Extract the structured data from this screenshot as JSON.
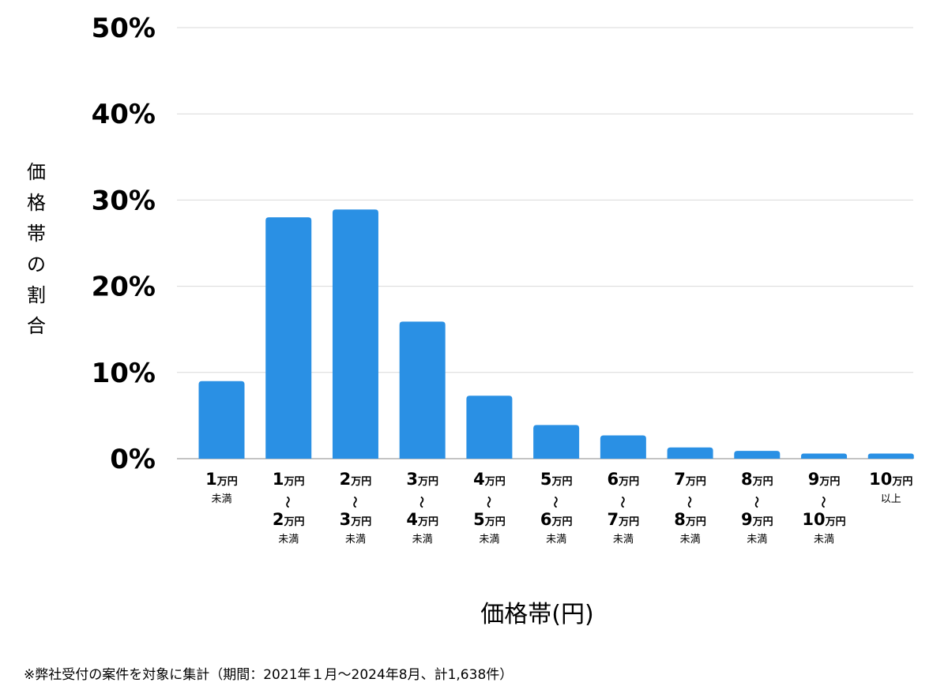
{
  "chart_data": {
    "type": "bar",
    "ylabel": "価格帯の割合",
    "xlabel": "価格帯(円)",
    "ylim": [
      0,
      50
    ],
    "yticks": [
      "0%",
      "10%",
      "20%",
      "30%",
      "40%",
      "50%"
    ],
    "grid": true,
    "bar_color": "#2a90e4",
    "categories": [
      {
        "lines": [
          {
            "num": "1",
            "unit": "万円"
          },
          {
            "small": "未満"
          }
        ]
      },
      {
        "lines": [
          {
            "num": "1",
            "unit": "万円"
          },
          {
            "wave": "〜"
          },
          {
            "num": "2",
            "unit": "万円"
          },
          {
            "small": "未満"
          }
        ]
      },
      {
        "lines": [
          {
            "num": "2",
            "unit": "万円"
          },
          {
            "wave": "〜"
          },
          {
            "num": "3",
            "unit": "万円"
          },
          {
            "small": "未満"
          }
        ]
      },
      {
        "lines": [
          {
            "num": "3",
            "unit": "万円"
          },
          {
            "wave": "〜"
          },
          {
            "num": "4",
            "unit": "万円"
          },
          {
            "small": "未満"
          }
        ]
      },
      {
        "lines": [
          {
            "num": "4",
            "unit": "万円"
          },
          {
            "wave": "〜"
          },
          {
            "num": "5",
            "unit": "万円"
          },
          {
            "small": "未満"
          }
        ]
      },
      {
        "lines": [
          {
            "num": "5",
            "unit": "万円"
          },
          {
            "wave": "〜"
          },
          {
            "num": "6",
            "unit": "万円"
          },
          {
            "small": "未満"
          }
        ]
      },
      {
        "lines": [
          {
            "num": "6",
            "unit": "万円"
          },
          {
            "wave": "〜"
          },
          {
            "num": "7",
            "unit": "万円"
          },
          {
            "small": "未満"
          }
        ]
      },
      {
        "lines": [
          {
            "num": "7",
            "unit": "万円"
          },
          {
            "wave": "〜"
          },
          {
            "num": "8",
            "unit": "万円"
          },
          {
            "small": "未満"
          }
        ]
      },
      {
        "lines": [
          {
            "num": "8",
            "unit": "万円"
          },
          {
            "wave": "〜"
          },
          {
            "num": "9",
            "unit": "万円"
          },
          {
            "small": "未満"
          }
        ]
      },
      {
        "lines": [
          {
            "num": "9",
            "unit": "万円"
          },
          {
            "wave": "〜"
          },
          {
            "num": "10",
            "unit": "万円"
          },
          {
            "small": "未満"
          }
        ]
      },
      {
        "lines": [
          {
            "num": "10",
            "unit": "万円"
          },
          {
            "small": "以上"
          }
        ]
      }
    ],
    "values": [
      9.0,
      28.0,
      28.9,
      15.9,
      7.3,
      3.9,
      2.7,
      1.3,
      0.9,
      0.6,
      0.6
    ]
  },
  "footnote": "※弊社受付の案件を対象に集計（期間：2021年１月〜2024年8月、計1,638件）"
}
